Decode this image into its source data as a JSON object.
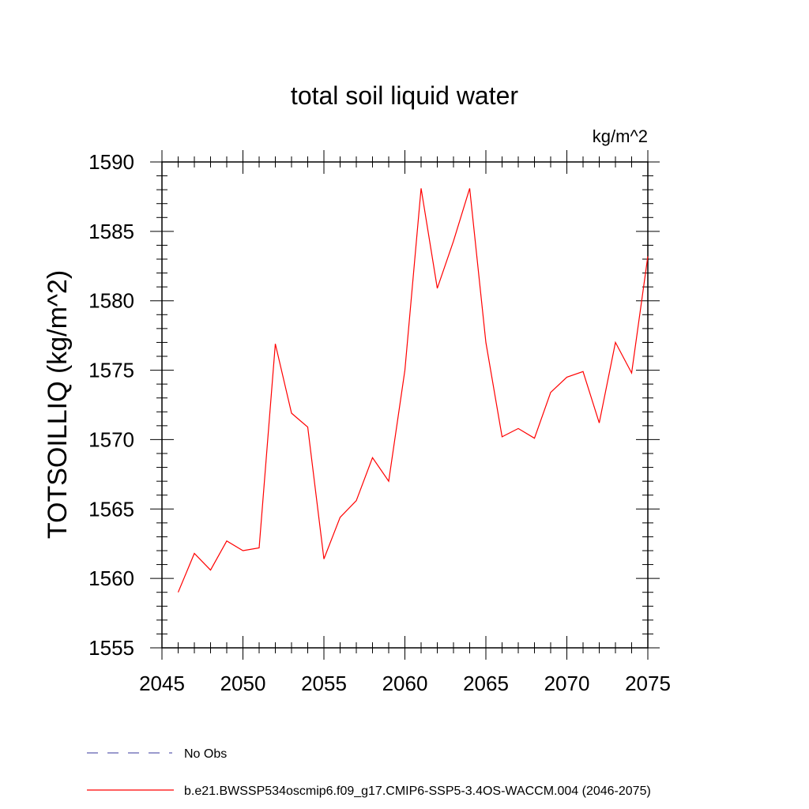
{
  "chart_data": {
    "type": "line",
    "title": "total soil liquid water",
    "units": "kg/m^2",
    "ylabel": "TOTSOILLIQ  (kg/m^2)",
    "xlabel": "",
    "xlim": [
      2045,
      2075
    ],
    "ylim": [
      1555,
      1590
    ],
    "x_ticks": [
      2045,
      2050,
      2055,
      2060,
      2065,
      2070,
      2075
    ],
    "y_ticks": [
      1555,
      1560,
      1565,
      1570,
      1575,
      1580,
      1585,
      1590
    ],
    "grid": false,
    "series": [
      {
        "name": "b.e21.BWSSP534oscmip6.f09_g17.CMIP6-SSP5-3.4OS-WACCM.004 (2046-2075)",
        "color": "#ff0000",
        "x": [
          2046,
          2047,
          2048,
          2049,
          2050,
          2051,
          2052,
          2053,
          2054,
          2055,
          2056,
          2057,
          2058,
          2059,
          2060,
          2061,
          2062,
          2063,
          2064,
          2065,
          2066,
          2067,
          2068,
          2069,
          2070,
          2071,
          2072,
          2073,
          2074,
          2075
        ],
        "values": [
          1559.0,
          1561.8,
          1560.6,
          1562.7,
          1562.0,
          1562.2,
          1576.9,
          1571.9,
          1570.9,
          1561.4,
          1564.4,
          1565.6,
          1568.7,
          1567.0,
          1575.0,
          1588.1,
          1580.9,
          1584.3,
          1588.1,
          1577.0,
          1570.2,
          1570.8,
          1570.1,
          1573.4,
          1574.5,
          1574.9,
          1571.2,
          1577.0,
          1574.8,
          1583.2
        ]
      }
    ],
    "legend": {
      "placement": "bottom-left",
      "entries": [
        {
          "label": "No Obs",
          "style": "dashed",
          "color": "#5f5faf"
        },
        {
          "label": "b.e21.BWSSP534oscmip6.f09_g17.CMIP6-SSP5-3.4OS-WACCM.004 (2046-2075)",
          "style": "solid",
          "color": "#ff0000"
        }
      ]
    }
  }
}
